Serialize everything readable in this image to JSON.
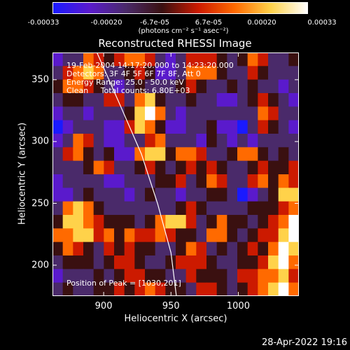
{
  "colorbar": {
    "ticks": [
      "-0.00033",
      "-0.00020",
      "-6.7e-05",
      "6.7e-05",
      "0.00020",
      "0.00033"
    ],
    "unit": "(photons cm⁻² s⁻¹ asec⁻²)",
    "colors": [
      "#1a1aff",
      "#5a1acc",
      "#4a2a6a",
      "#3a1010",
      "#cc1a00",
      "#ff6a00",
      "#ffd24a",
      "#ffffff"
    ]
  },
  "title": "Reconstructed RHESSI Image",
  "annotations": {
    "time": "19-Feb-2004 14:17:20.000 to 14:23:20.000",
    "detectors": "Detectors: 3F 4F 5F 6F 7F 8F, Att 0",
    "energy": "Energy Range: 25.0 - 50.0 keV",
    "method": "Clean     Total counts: 6.80E+03",
    "peak": "Position of Peak = [1030,201]"
  },
  "chart_data": {
    "type": "heatmap",
    "title": "Reconstructed RHESSI Image",
    "xlabel": "Heliocentric X (arcsec)",
    "ylabel": "Heliocentric Y (arcsec)",
    "xlim": [
      862,
      1045
    ],
    "ylim": [
      175,
      372
    ],
    "xticks": [
      900,
      950,
      1000
    ],
    "yticks": [
      200,
      250,
      300,
      350
    ],
    "zlim": [
      -0.00033,
      0.00033
    ],
    "peak": [
      1030,
      201
    ],
    "grid": [
      [
        1,
        2,
        2,
        5,
        4,
        3,
        4,
        5,
        5,
        4,
        2,
        1,
        2,
        4,
        4,
        4,
        3,
        2,
        3,
        5,
        4,
        2,
        2,
        3
      ],
      [
        2,
        4,
        5,
        6,
        5,
        2,
        2,
        3,
        4,
        3,
        1,
        1,
        2,
        5,
        5,
        5,
        3,
        2,
        2,
        4,
        3,
        2,
        2,
        2
      ],
      [
        3,
        5,
        5,
        4,
        3,
        2,
        1,
        2,
        3,
        2,
        2,
        2,
        3,
        4,
        3,
        2,
        2,
        3,
        2,
        3,
        2,
        2,
        1,
        2
      ],
      [
        2,
        3,
        3,
        2,
        2,
        4,
        4,
        2,
        5,
        6,
        3,
        2,
        2,
        3,
        2,
        2,
        1,
        1,
        2,
        3,
        4,
        3,
        2,
        1
      ],
      [
        1,
        2,
        2,
        1,
        2,
        2,
        2,
        3,
        6,
        7,
        5,
        2,
        1,
        2,
        2,
        2,
        2,
        2,
        2,
        2,
        5,
        4,
        2,
        2
      ],
      [
        0,
        1,
        2,
        2,
        2,
        1,
        1,
        4,
        6,
        5,
        3,
        1,
        1,
        2,
        2,
        3,
        1,
        1,
        0,
        2,
        4,
        3,
        2,
        1
      ],
      [
        1,
        2,
        5,
        4,
        2,
        1,
        1,
        2,
        2,
        4,
        5,
        2,
        2,
        2,
        1,
        3,
        2,
        1,
        2,
        1,
        2,
        2,
        2,
        2
      ],
      [
        2,
        4,
        5,
        3,
        2,
        3,
        1,
        1,
        5,
        6,
        6,
        3,
        5,
        5,
        4,
        2,
        2,
        3,
        5,
        5,
        3,
        2,
        3,
        2
      ],
      [
        2,
        2,
        2,
        3,
        5,
        4,
        2,
        2,
        3,
        4,
        3,
        2,
        3,
        4,
        3,
        4,
        3,
        2,
        2,
        3,
        4,
        3,
        3,
        4
      ],
      [
        1,
        2,
        2,
        2,
        2,
        1,
        1,
        2,
        2,
        2,
        3,
        3,
        4,
        2,
        3,
        5,
        4,
        2,
        2,
        4,
        5,
        3,
        5,
        4
      ],
      [
        1,
        1,
        2,
        3,
        2,
        2,
        2,
        1,
        2,
        3,
        2,
        2,
        1,
        2,
        2,
        3,
        3,
        2,
        0,
        1,
        2,
        3,
        6,
        6
      ],
      [
        2,
        5,
        6,
        5,
        3,
        2,
        2,
        2,
        2,
        2,
        2,
        2,
        3,
        4,
        3,
        2,
        2,
        2,
        2,
        3,
        3,
        3,
        4,
        5
      ],
      [
        3,
        6,
        6,
        5,
        4,
        3,
        3,
        3,
        2,
        3,
        5,
        6,
        6,
        4,
        2,
        3,
        5,
        3,
        3,
        2,
        3,
        4,
        5,
        7
      ],
      [
        5,
        5,
        6,
        6,
        4,
        5,
        3,
        5,
        4,
        4,
        5,
        4,
        3,
        3,
        2,
        5,
        5,
        3,
        2,
        3,
        4,
        4,
        6,
        7
      ],
      [
        3,
        5,
        4,
        3,
        2,
        4,
        3,
        4,
        3,
        3,
        2,
        2,
        3,
        5,
        4,
        2,
        3,
        2,
        3,
        4,
        3,
        5,
        7,
        6
      ],
      [
        2,
        3,
        3,
        3,
        2,
        3,
        4,
        4,
        3,
        2,
        2,
        3,
        4,
        4,
        4,
        3,
        2,
        2,
        3,
        3,
        4,
        6,
        7,
        5
      ],
      [
        1,
        2,
        2,
        2,
        3,
        2,
        3,
        4,
        4,
        3,
        3,
        2,
        2,
        4,
        3,
        3,
        3,
        2,
        4,
        4,
        5,
        5,
        6,
        4
      ],
      [
        2,
        3,
        2,
        2,
        3,
        3,
        4,
        3,
        4,
        5,
        4,
        3,
        3,
        2,
        4,
        4,
        3,
        2,
        3,
        4,
        5,
        6,
        7,
        5
      ]
    ],
    "limb": [
      [
        895,
        372
      ],
      [
        912,
        330
      ],
      [
        928,
        290
      ],
      [
        940,
        250
      ],
      [
        950,
        210
      ],
      [
        954,
        175
      ]
    ]
  },
  "timestamp": "28-Apr-2022 19:16"
}
